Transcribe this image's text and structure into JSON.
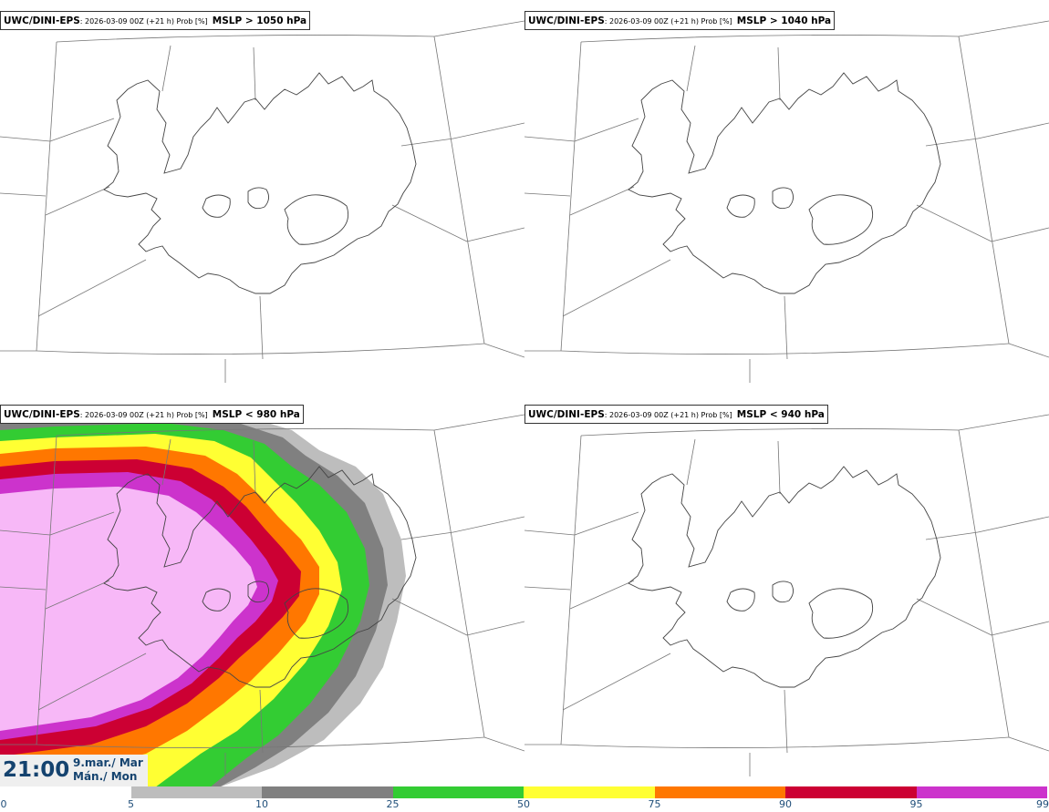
{
  "panels": [
    {
      "model": "UWC/DINI-EPS",
      "meta": ": 2026-03-09 00Z (+21 h) Prob [%]",
      "field": "MSLP > 1050 hPa"
    },
    {
      "model": "UWC/DINI-EPS",
      "meta": ": 2026-03-09 00Z (+21 h) Prob [%]",
      "field": "MSLP > 1040 hPa"
    },
    {
      "model": "UWC/DINI-EPS",
      "meta": ": 2026-03-09 00Z (+21 h) Prob [%]",
      "field": "MSLP < 980 hPa"
    },
    {
      "model": "UWC/DINI-EPS",
      "meta": ": 2026-03-09 00Z (+21 h) Prob [%]",
      "field": "MSLP < 940 hPa"
    }
  ],
  "valid_time": {
    "time": "21:00",
    "date_line1": "9.mar./ Mar",
    "date_line2": "Mán./ Mon"
  },
  "colorbar": {
    "ticks": [
      "0",
      "5",
      "10",
      "25",
      "50",
      "75",
      "90",
      "95",
      "99"
    ],
    "colors": [
      "#ffffff",
      "#bdbdbd",
      "#808080",
      "#33cc33",
      "#ffff33",
      "#ff7700",
      "#cc0033",
      "#cc33cc",
      "#f7b8f7"
    ]
  }
}
